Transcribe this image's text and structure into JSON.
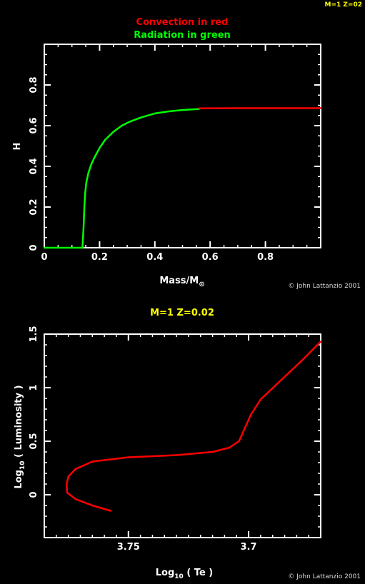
{
  "corner_label": "M=1 Z=02",
  "colors": {
    "background": "#000000",
    "axes": "#ffffff",
    "convection": "#ff0000",
    "radiation": "#00ff00",
    "title": "#ffff00",
    "credit": "#d8d8d8"
  },
  "chart_data": [
    {
      "type": "line",
      "title_lines": [
        {
          "text": "Convection in red",
          "color": "#ff0000"
        },
        {
          "text": "Radiation in green",
          "color": "#00ff00"
        }
      ],
      "xlabel": "Mass/M",
      "xlabel_symbol": "⊙",
      "ylabel": "H",
      "xlim": [
        0,
        1.0
      ],
      "ylim": [
        0,
        1.0
      ],
      "x_ticks": [
        0,
        0.2,
        0.4,
        0.6,
        0.8
      ],
      "x_tick_labels": [
        "0",
        "0.2",
        "0.4",
        "0.6",
        "0.8"
      ],
      "y_ticks": [
        0,
        0.2,
        0.4,
        0.6,
        0.8
      ],
      "y_tick_labels": [
        "0",
        "0.2",
        "0.4",
        "0.6",
        "0.8"
      ],
      "credit": "© John Lattanzio 2001",
      "series": [
        {
          "name": "Radiation",
          "color": "#00ff00",
          "x": [
            0.0,
            0.05,
            0.1,
            0.138,
            0.142,
            0.145,
            0.148,
            0.152,
            0.16,
            0.17,
            0.18,
            0.2,
            0.22,
            0.25,
            0.28,
            0.31,
            0.35,
            0.4,
            0.45,
            0.5,
            0.56
          ],
          "y": [
            0.0,
            0.0,
            0.0,
            0.0,
            0.1,
            0.2,
            0.27,
            0.32,
            0.37,
            0.41,
            0.44,
            0.49,
            0.53,
            0.57,
            0.6,
            0.62,
            0.64,
            0.66,
            0.67,
            0.677,
            0.682
          ]
        },
        {
          "name": "Convection",
          "color": "#ff0000",
          "x": [
            0.56,
            0.7,
            0.85,
            1.0
          ],
          "y": [
            0.685,
            0.686,
            0.686,
            0.686
          ]
        }
      ]
    },
    {
      "type": "line",
      "title": "M=1 Z=0.02",
      "xlabel": "Log",
      "xlabel_sub": "10",
      "xlabel_rest": " ( Te )",
      "ylabel": "Log",
      "ylabel_sub": "10",
      "ylabel_rest": " ( Luminosity )",
      "xlim": [
        3.785,
        3.67
      ],
      "x_inverted": true,
      "ylim": [
        -0.4,
        1.5
      ],
      "x_ticks": [
        3.75,
        3.7
      ],
      "x_tick_labels": [
        "3.75",
        "3.7"
      ],
      "y_ticks": [
        0,
        0.5,
        1,
        1.5
      ],
      "y_tick_labels": [
        "0",
        "0.5",
        "1",
        "1.5"
      ],
      "credit": "© John Lattanzio 2001",
      "series": [
        {
          "name": "Track",
          "color": "#ff0000",
          "x": [
            3.7574,
            3.765,
            3.772,
            3.7755,
            3.7757,
            3.775,
            3.772,
            3.765,
            3.75,
            3.73,
            3.715,
            3.708,
            3.704,
            3.702,
            3.699,
            3.695,
            3.687,
            3.678,
            3.67
          ],
          "y": [
            -0.15,
            -0.1,
            -0.04,
            0.02,
            0.1,
            0.17,
            0.24,
            0.31,
            0.35,
            0.37,
            0.4,
            0.44,
            0.5,
            0.6,
            0.75,
            0.89,
            1.06,
            1.25,
            1.43
          ]
        }
      ]
    }
  ]
}
